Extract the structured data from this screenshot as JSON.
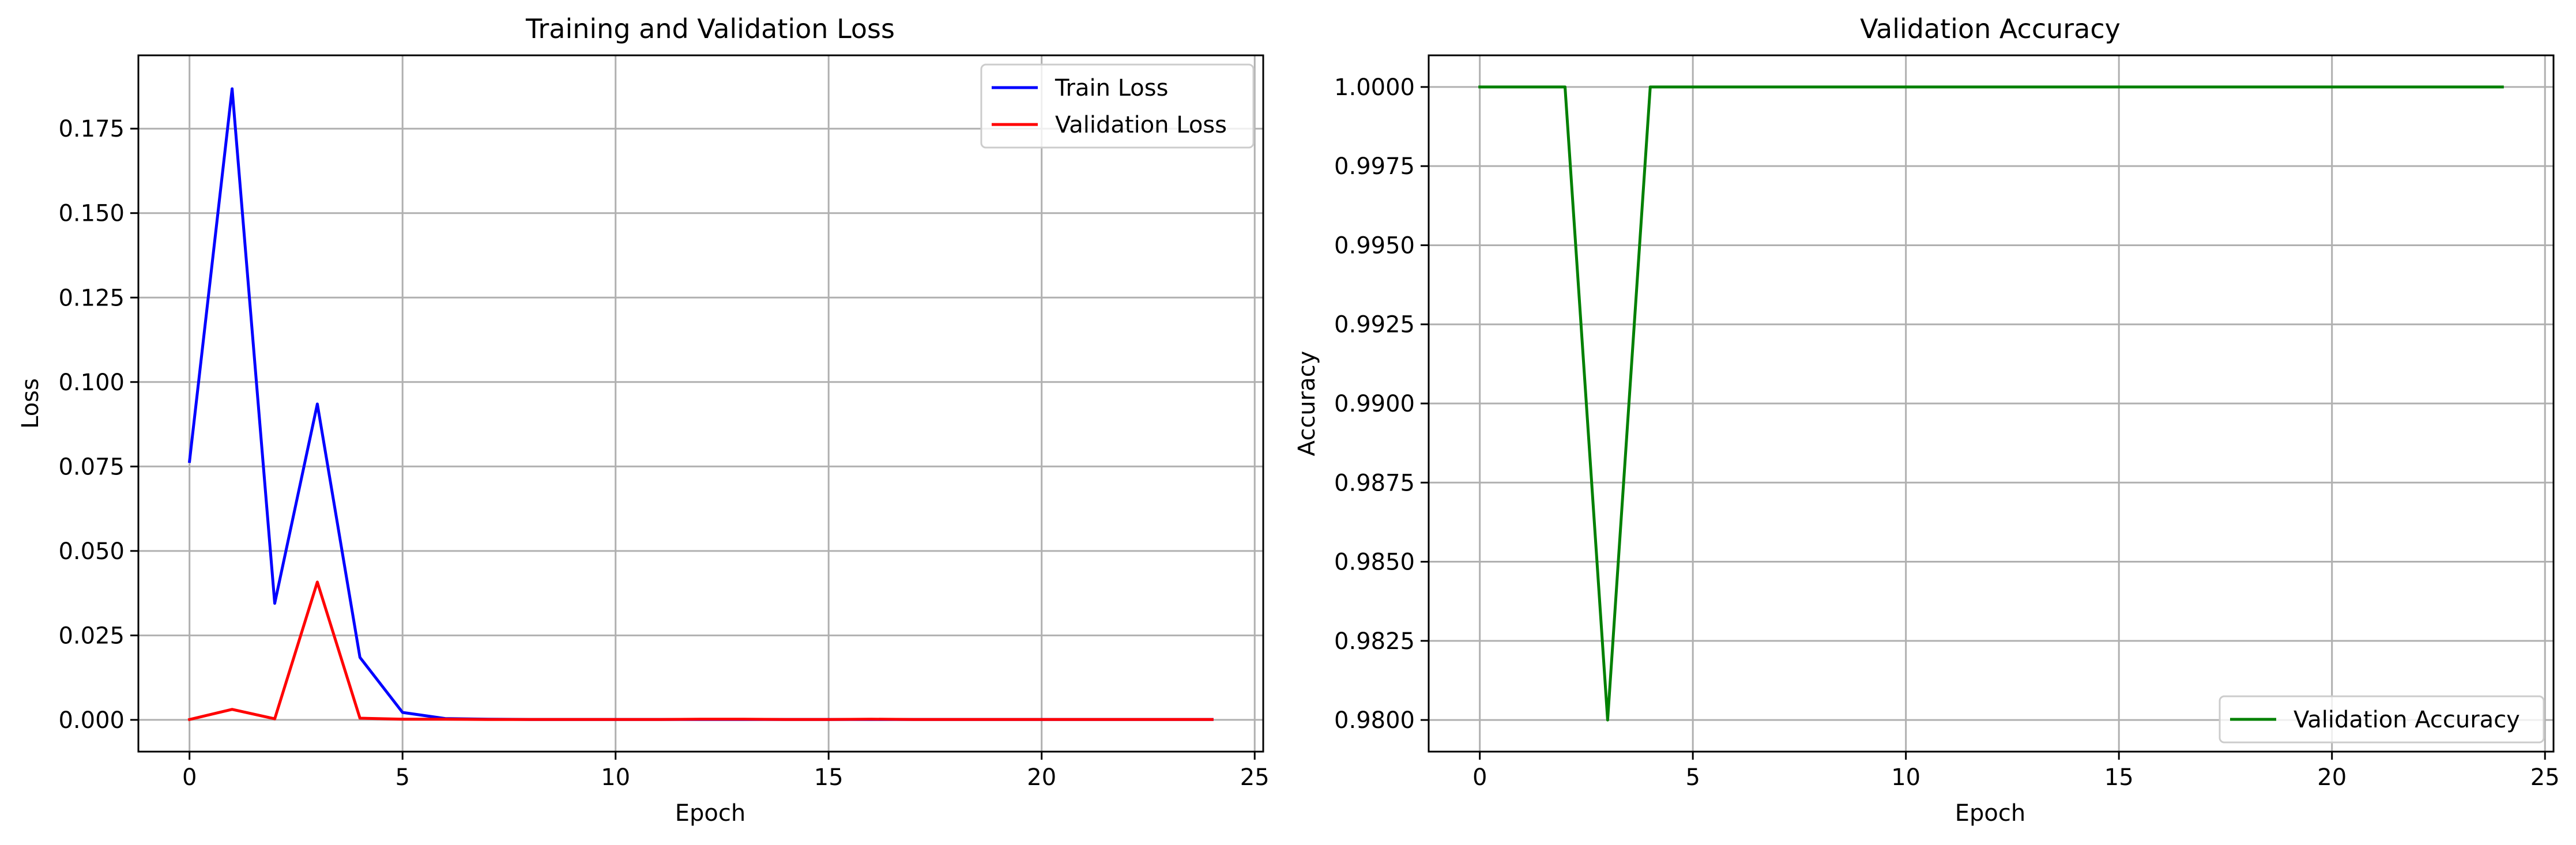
{
  "chart_data": [
    {
      "type": "line",
      "title": "Training and Validation Loss",
      "xlabel": "Epoch",
      "ylabel": "Loss",
      "xlim": [
        -1.2,
        25.2
      ],
      "ylim": [
        -0.0094,
        0.1967
      ],
      "xticks": [
        0,
        5,
        10,
        15,
        20,
        25
      ],
      "yticks": [
        0.0,
        0.025,
        0.05,
        0.075,
        0.1,
        0.125,
        0.15,
        0.175
      ],
      "ytick_labels": [
        "0.000",
        "0.025",
        "0.050",
        "0.075",
        "0.100",
        "0.125",
        "0.150",
        "0.175"
      ],
      "grid": true,
      "legend_position": "top-right",
      "x": [
        0,
        1,
        2,
        3,
        4,
        5,
        6,
        7,
        8,
        9,
        10,
        11,
        12,
        13,
        14,
        15,
        16,
        17,
        18,
        19,
        20,
        21,
        22,
        23,
        24
      ],
      "series": [
        {
          "name": "Train Loss",
          "color": "#0000ff",
          "values": [
            0.0765,
            0.1868,
            0.0345,
            0.0935,
            0.0185,
            0.0022,
            0.0004,
            0.0002,
            0.0001,
            0.0001,
            0.0001,
            0.0001,
            0.0001,
            0.0001,
            0.0001,
            0.0001,
            0.0001,
            0.0001,
            0.0001,
            0.0001,
            0.0001,
            0.0001,
            0.0001,
            0.0001,
            0.0001
          ]
        },
        {
          "name": "Validation Loss",
          "color": "#ff0000",
          "values": [
            0.0001,
            0.0031,
            0.0003,
            0.0408,
            0.0005,
            0.0002,
            0.0002,
            0.0001,
            0.0001,
            0.0001,
            0.0001,
            0.0001,
            0.0002,
            0.0002,
            0.0001,
            0.0001,
            0.0002,
            0.0001,
            0.0001,
            0.0001,
            0.0001,
            0.0001,
            0.0001,
            0.0001,
            0.0001
          ]
        }
      ]
    },
    {
      "type": "line",
      "title": "Validation Accuracy",
      "xlabel": "Epoch",
      "ylabel": "Accuracy",
      "xlim": [
        -1.2,
        25.2
      ],
      "ylim": [
        0.979,
        1.001
      ],
      "xticks": [
        0,
        5,
        10,
        15,
        20,
        25
      ],
      "yticks": [
        0.98,
        0.9825,
        0.985,
        0.9875,
        0.99,
        0.9925,
        0.995,
        0.9975,
        1.0
      ],
      "ytick_labels": [
        "0.9800",
        "0.9825",
        "0.9850",
        "0.9875",
        "0.9900",
        "0.9925",
        "0.9950",
        "0.9975",
        "1.0000"
      ],
      "grid": true,
      "legend_position": "bottom-right",
      "x": [
        0,
        1,
        2,
        3,
        4,
        5,
        6,
        7,
        8,
        9,
        10,
        11,
        12,
        13,
        14,
        15,
        16,
        17,
        18,
        19,
        20,
        21,
        22,
        23,
        24
      ],
      "series": [
        {
          "name": "Validation Accuracy",
          "color": "#008000",
          "values": [
            1.0,
            1.0,
            1.0,
            0.98,
            1.0,
            1.0,
            1.0,
            1.0,
            1.0,
            1.0,
            1.0,
            1.0,
            1.0,
            1.0,
            1.0,
            1.0,
            1.0,
            1.0,
            1.0,
            1.0,
            1.0,
            1.0,
            1.0,
            1.0,
            1.0
          ]
        }
      ]
    }
  ]
}
